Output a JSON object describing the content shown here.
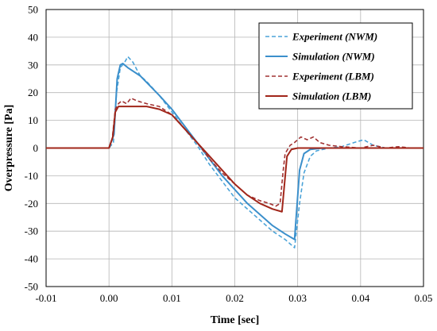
{
  "chart_data": {
    "type": "line",
    "title": "",
    "xlabel": "Time [sec]",
    "ylabel": "Overpressure [Pa]",
    "xlim": [
      -0.01,
      0.05
    ],
    "ylim": [
      -50,
      50
    ],
    "x_ticks": [
      "-0.01",
      "0.00",
      "0.01",
      "0.02",
      "0.03",
      "0.04",
      "0.05"
    ],
    "y_ticks": [
      "-50",
      "-40",
      "-30",
      "-20",
      "-10",
      "0",
      "10",
      "20",
      "30",
      "40",
      "50"
    ],
    "x_tick_values": [
      -0.01,
      0.0,
      0.01,
      0.02,
      0.03,
      0.04,
      0.05
    ],
    "y_tick_values": [
      -50,
      -40,
      -30,
      -20,
      -10,
      0,
      10,
      20,
      30,
      40,
      50
    ],
    "grid": true,
    "legend_position": "top-right",
    "series": [
      {
        "name": "Experiment (NWM)",
        "color": "#4ba3d8",
        "dash": "dashed",
        "points": [
          [
            -0.01,
            0
          ],
          [
            0.0,
            0
          ],
          [
            0.0007,
            2
          ],
          [
            0.0012,
            20
          ],
          [
            0.0018,
            29
          ],
          [
            0.0025,
            31
          ],
          [
            0.003,
            33
          ],
          [
            0.0038,
            31
          ],
          [
            0.0045,
            28
          ],
          [
            0.005,
            26
          ],
          [
            0.006,
            24
          ],
          [
            0.008,
            19
          ],
          [
            0.01,
            13
          ],
          [
            0.012,
            7
          ],
          [
            0.014,
            1
          ],
          [
            0.016,
            -6
          ],
          [
            0.018,
            -12
          ],
          [
            0.02,
            -18
          ],
          [
            0.022,
            -22
          ],
          [
            0.024,
            -26
          ],
          [
            0.026,
            -30
          ],
          [
            0.028,
            -33
          ],
          [
            0.0295,
            -36
          ],
          [
            0.0303,
            -20
          ],
          [
            0.031,
            -9
          ],
          [
            0.032,
            -3
          ],
          [
            0.033,
            -1
          ],
          [
            0.035,
            0
          ],
          [
            0.037,
            0.5
          ],
          [
            0.039,
            2
          ],
          [
            0.0405,
            3
          ],
          [
            0.042,
            1
          ],
          [
            0.044,
            0
          ],
          [
            0.046,
            0
          ],
          [
            0.05,
            0
          ]
        ]
      },
      {
        "name": "Simulation (NWM)",
        "color": "#3b8fcb",
        "dash": "solid",
        "points": [
          [
            -0.01,
            0
          ],
          [
            0.0,
            0
          ],
          [
            0.0008,
            5
          ],
          [
            0.0013,
            25
          ],
          [
            0.0018,
            30
          ],
          [
            0.0022,
            30.5
          ],
          [
            0.003,
            29
          ],
          [
            0.005,
            26
          ],
          [
            0.008,
            19
          ],
          [
            0.01,
            14
          ],
          [
            0.012,
            8
          ],
          [
            0.014,
            2
          ],
          [
            0.016,
            -4
          ],
          [
            0.018,
            -10
          ],
          [
            0.02,
            -15
          ],
          [
            0.022,
            -20
          ],
          [
            0.024,
            -24
          ],
          [
            0.026,
            -28
          ],
          [
            0.028,
            -31
          ],
          [
            0.0295,
            -33
          ],
          [
            0.0303,
            -8
          ],
          [
            0.031,
            -2
          ],
          [
            0.032,
            -0.5
          ],
          [
            0.034,
            0
          ],
          [
            0.05,
            0
          ]
        ]
      },
      {
        "name": "Experiment (LBM)",
        "color": "#a13333",
        "dash": "dashed",
        "points": [
          [
            -0.01,
            0
          ],
          [
            0.0,
            0
          ],
          [
            0.0005,
            3
          ],
          [
            0.001,
            14
          ],
          [
            0.0015,
            16
          ],
          [
            0.002,
            17
          ],
          [
            0.0028,
            16
          ],
          [
            0.0035,
            18
          ],
          [
            0.0045,
            17
          ],
          [
            0.006,
            16
          ],
          [
            0.008,
            15
          ],
          [
            0.01,
            12
          ],
          [
            0.012,
            7
          ],
          [
            0.014,
            2
          ],
          [
            0.016,
            -4
          ],
          [
            0.018,
            -9
          ],
          [
            0.02,
            -13
          ],
          [
            0.022,
            -17
          ],
          [
            0.024,
            -19
          ],
          [
            0.0255,
            -20
          ],
          [
            0.0265,
            -21
          ],
          [
            0.0272,
            -20
          ],
          [
            0.0277,
            -8
          ],
          [
            0.028,
            -2
          ],
          [
            0.0288,
            1
          ],
          [
            0.0295,
            2
          ],
          [
            0.0305,
            4
          ],
          [
            0.0315,
            3
          ],
          [
            0.0325,
            4
          ],
          [
            0.0335,
            2
          ],
          [
            0.035,
            1
          ],
          [
            0.037,
            0.5
          ],
          [
            0.04,
            0
          ],
          [
            0.042,
            1
          ],
          [
            0.044,
            0
          ],
          [
            0.046,
            0.5
          ],
          [
            0.048,
            0
          ],
          [
            0.05,
            0
          ]
        ]
      },
      {
        "name": "Simulation (LBM)",
        "color": "#a1261a",
        "dash": "solid",
        "points": [
          [
            -0.01,
            0
          ],
          [
            0.0,
            0
          ],
          [
            0.0006,
            4
          ],
          [
            0.001,
            13
          ],
          [
            0.0015,
            15
          ],
          [
            0.002,
            15
          ],
          [
            0.006,
            15
          ],
          [
            0.008,
            14
          ],
          [
            0.01,
            12
          ],
          [
            0.012,
            7
          ],
          [
            0.014,
            2
          ],
          [
            0.016,
            -3
          ],
          [
            0.018,
            -8
          ],
          [
            0.02,
            -13
          ],
          [
            0.022,
            -17
          ],
          [
            0.024,
            -20
          ],
          [
            0.026,
            -22
          ],
          [
            0.0275,
            -23
          ],
          [
            0.0283,
            -3
          ],
          [
            0.029,
            -0.5
          ],
          [
            0.03,
            0
          ],
          [
            0.032,
            0
          ],
          [
            0.05,
            0
          ]
        ]
      }
    ]
  }
}
